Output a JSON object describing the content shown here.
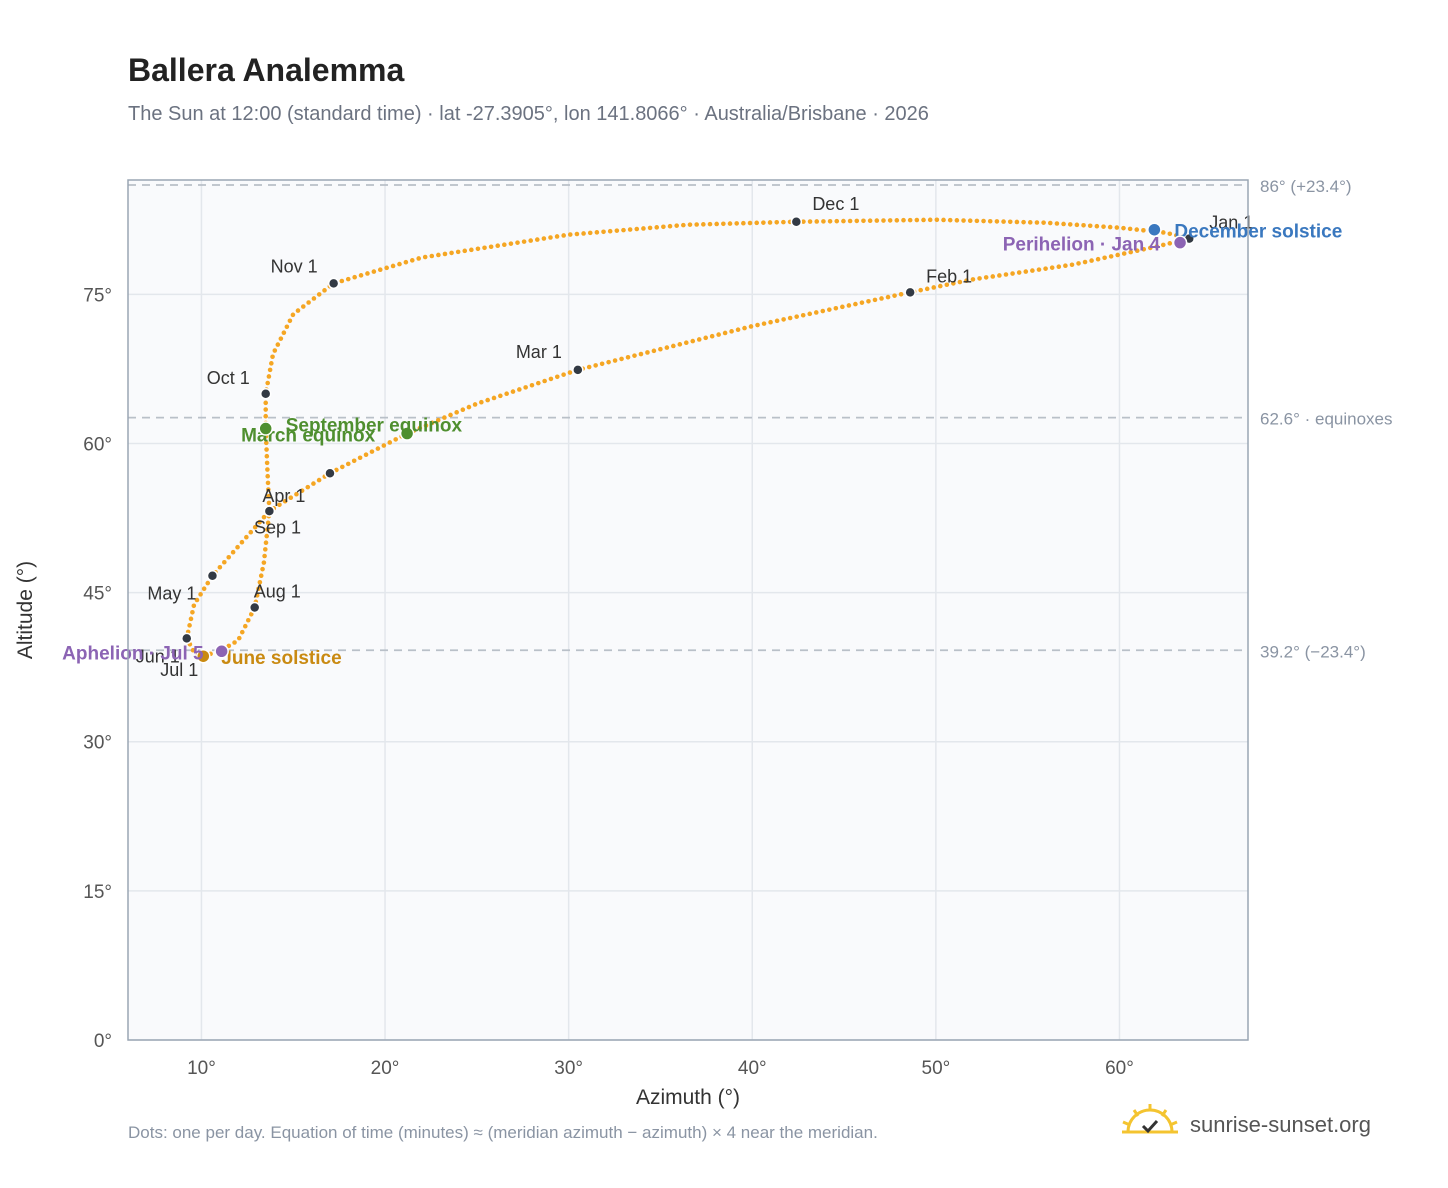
{
  "title": "Ballera Analemma",
  "subtitle": "The Sun at 12:00 (standard time) · lat -27.3905°, lon 141.8066° · Australia/Brisbane · 2026",
  "footnote": "Dots: one per day. Equation of time (minutes) ≈ (meridian azimuth − azimuth) × 4 near the meridian.",
  "brand": {
    "name": "sunrise-sunset.org",
    "icon": "sun-logo-icon"
  },
  "colors": {
    "path": "#f5a623",
    "month": "#333a44",
    "equinox": "#4f8f2f",
    "june": "#c98a12",
    "december": "#3a78bf",
    "apsis": "#8c64b4",
    "refline": "#b9c0c8",
    "plotbg": "#f9fafc",
    "grid": "#e3e7ec",
    "frame": "#9aa6b4"
  },
  "chart_data": {
    "type": "scatter",
    "xlabel": "Azimuth (°)",
    "ylabel": "Altitude (°)",
    "xlim": [
      6,
      67
    ],
    "ylim": [
      0,
      86.5
    ],
    "xticks": [
      10,
      20,
      30,
      40,
      50,
      60
    ],
    "xtick_labels": [
      "10°",
      "20°",
      "30°",
      "40°",
      "50°",
      "60°"
    ],
    "yticks": [
      0,
      15,
      30,
      45,
      60,
      75
    ],
    "ytick_labels": [
      "0°",
      "15°",
      "30°",
      "45°",
      "60°",
      "75°"
    ],
    "grid": true,
    "reference_lines": [
      {
        "value": 86.0,
        "label": "86° (+23.4°)"
      },
      {
        "value": 62.6,
        "label": "62.6° · equinoxes"
      },
      {
        "value": 39.2,
        "label": "39.2° (−23.4°)"
      }
    ],
    "path_anchors": [
      [
        63.8,
        80.6
      ],
      [
        62.0,
        79.8
      ],
      [
        57.5,
        78.0
      ],
      [
        52.0,
        76.5
      ],
      [
        48.6,
        75.2
      ],
      [
        40.0,
        71.8
      ],
      [
        30.5,
        67.4
      ],
      [
        25.0,
        64.0
      ],
      [
        21.2,
        61.0
      ],
      [
        17.0,
        57.0
      ],
      [
        13.7,
        53.2
      ],
      [
        10.6,
        46.7
      ],
      [
        9.6,
        43.8
      ],
      [
        9.2,
        40.4
      ],
      [
        9.6,
        39.0
      ],
      [
        10.1,
        38.6
      ],
      [
        11.1,
        39.2
      ],
      [
        12.0,
        40.2
      ],
      [
        12.9,
        43.5
      ],
      [
        13.4,
        48.0
      ],
      [
        13.7,
        53.2
      ],
      [
        13.6,
        57.0
      ],
      [
        13.5,
        61.5
      ],
      [
        13.5,
        65.0
      ],
      [
        13.9,
        69.0
      ],
      [
        15.0,
        73.0
      ],
      [
        17.2,
        76.1
      ],
      [
        22.0,
        78.7
      ],
      [
        30.0,
        81.0
      ],
      [
        36.5,
        82.0
      ],
      [
        42.4,
        82.3
      ],
      [
        50.0,
        82.5
      ],
      [
        56.0,
        82.2
      ],
      [
        60.0,
        81.7
      ],
      [
        62.5,
        81.2
      ],
      [
        63.8,
        80.6
      ]
    ],
    "month_points": [
      {
        "label": "Jan 1",
        "az": 63.8,
        "alt": 80.6
      },
      {
        "label": "Feb 1",
        "az": 48.6,
        "alt": 75.2
      },
      {
        "label": "Mar 1",
        "az": 30.5,
        "alt": 67.4
      },
      {
        "label": "Apr 1",
        "az": 13.7,
        "alt": 53.2
      },
      {
        "label": "May 1",
        "az": 10.6,
        "alt": 46.7
      },
      {
        "label": "Jun 1",
        "az": 9.2,
        "alt": 40.4
      },
      {
        "label": "Jul 1",
        "az": 10.1,
        "alt": 38.6
      },
      {
        "label": "Aug 1",
        "az": 12.9,
        "alt": 43.5
      },
      {
        "label": "Sep 1",
        "az": 17.0,
        "alt": 57.0
      },
      {
        "label": "Oct 1",
        "az": 13.5,
        "alt": 65.0
      },
      {
        "label": "Nov 1",
        "az": 17.2,
        "alt": 76.1
      },
      {
        "label": "Dec 1",
        "az": 42.4,
        "alt": 82.3
      }
    ],
    "events": [
      {
        "label": "March equinox",
        "az": 21.2,
        "alt": 61.0,
        "color": "#4f8f2f"
      },
      {
        "label": "September equinox",
        "az": 13.5,
        "alt": 61.5,
        "color": "#4f8f2f"
      },
      {
        "label": "June solstice",
        "az": 10.1,
        "alt": 38.6,
        "color": "#c98a12"
      },
      {
        "label": "December solstice",
        "az": 61.9,
        "alt": 81.5,
        "color": "#3a78bf"
      },
      {
        "label": "Perihelion · Jan 4",
        "az": 63.3,
        "alt": 80.2,
        "color": "#8c64b4"
      },
      {
        "label": "Aphelion · Jul 5",
        "az": 11.1,
        "alt": 39.1,
        "color": "#8c64b4"
      }
    ]
  }
}
